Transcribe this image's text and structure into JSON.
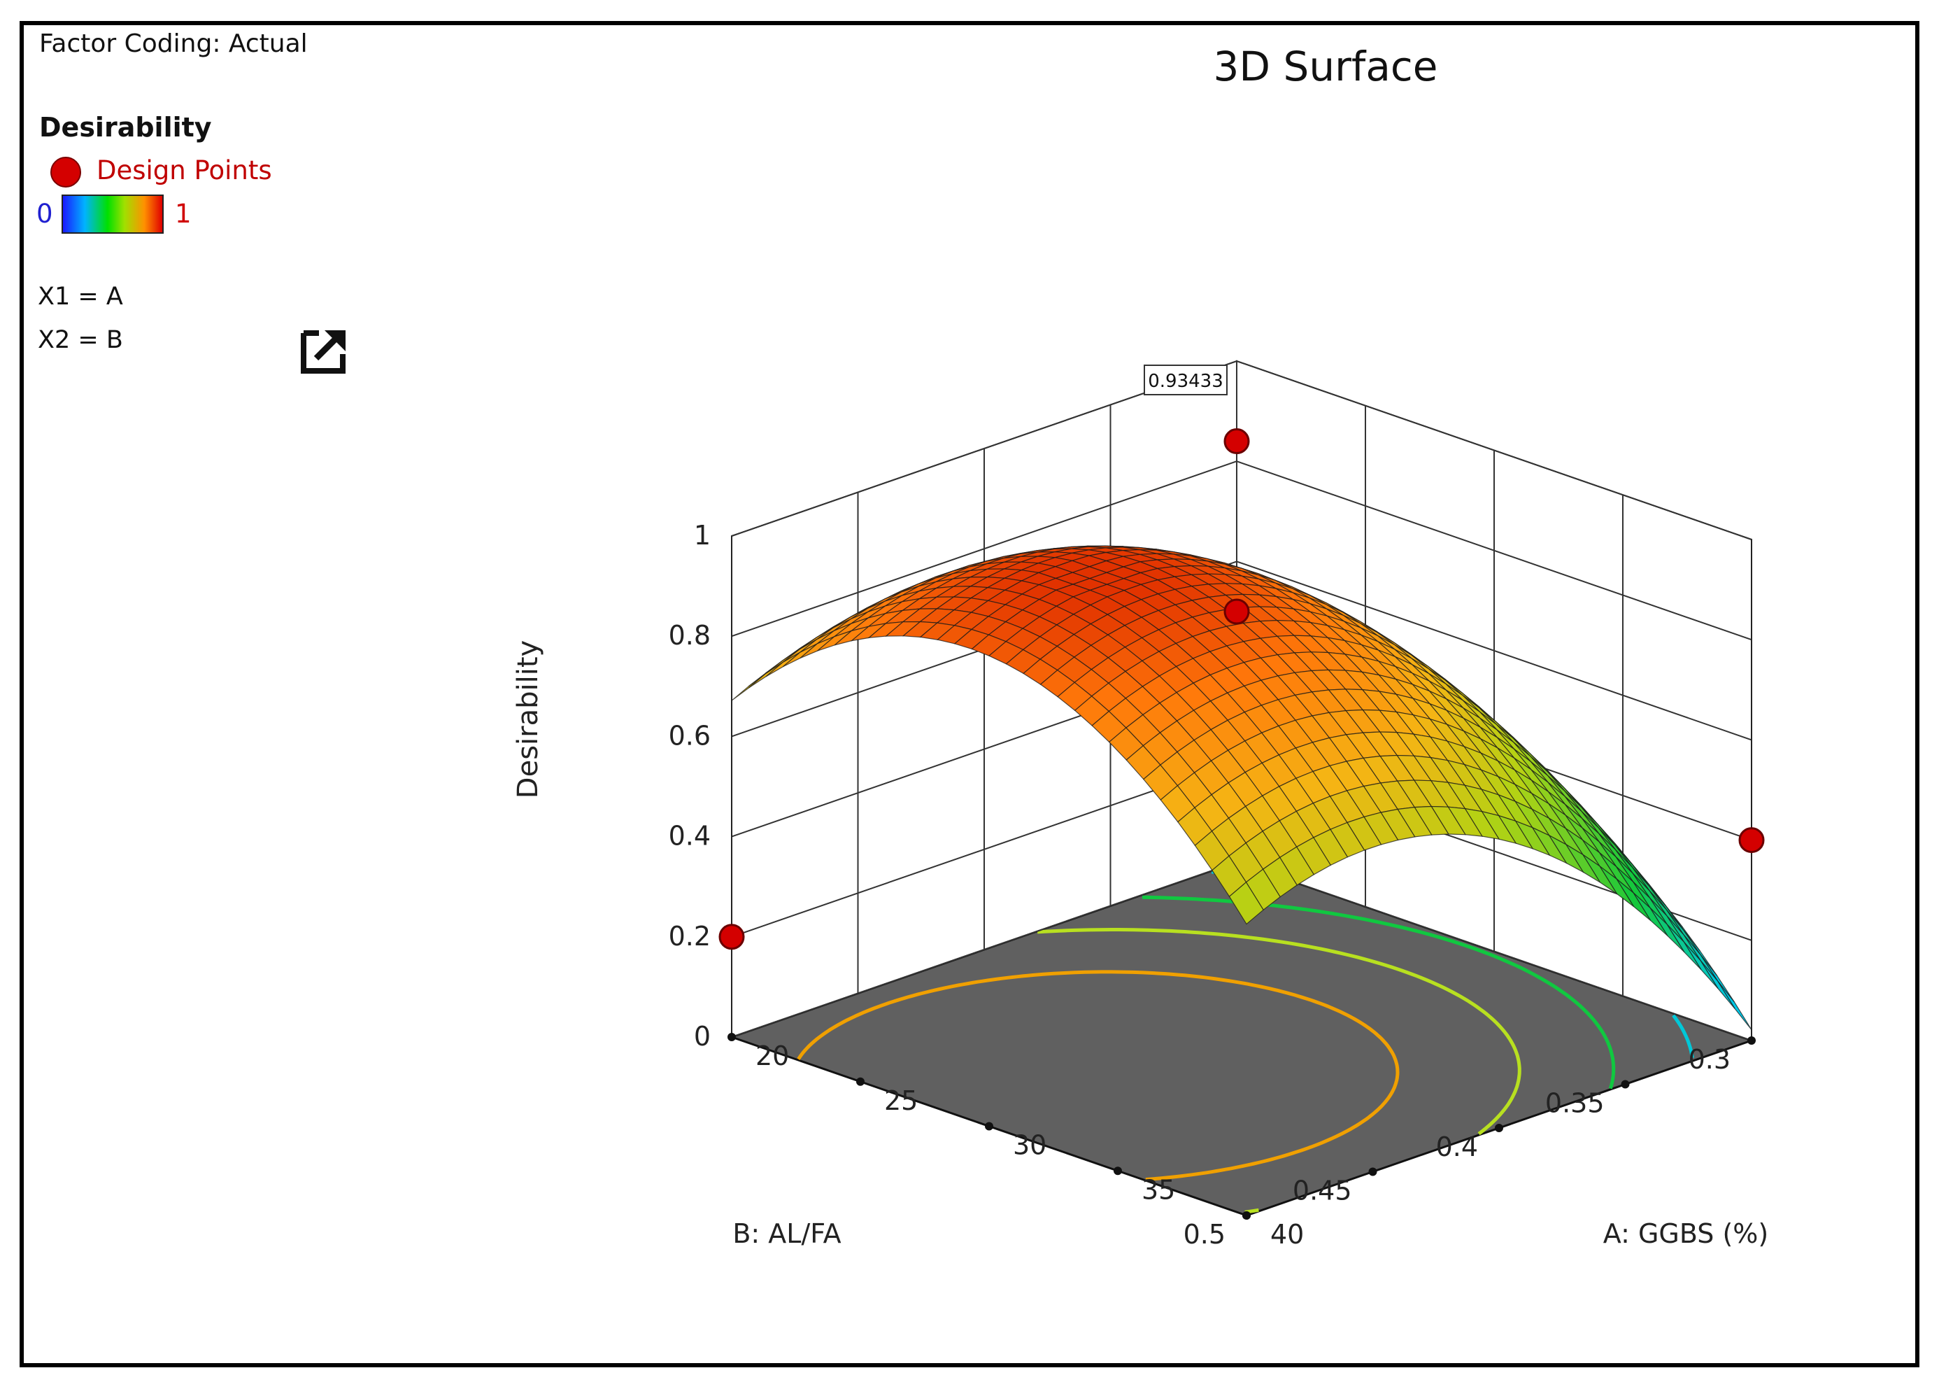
{
  "sidebar": {
    "factor_coding": "Factor Coding: Actual",
    "legend_title": "Desirability",
    "design_points_label": "Design Points",
    "scale_min": "0",
    "scale_max": "1",
    "x1_label": "X1 = A",
    "x2_label": "X2 = B",
    "popout_icon": "external-link-icon"
  },
  "chart_data": {
    "type": "surface3d",
    "title": "3D Surface",
    "zlabel": "Desirability",
    "xlabel": "A: GGBS (%)",
    "ylabel": "B: AL/FA",
    "x_ticks": [
      "20",
      "25",
      "30",
      "35",
      "40"
    ],
    "y_ticks": [
      "0.3",
      "0.35",
      "0.4",
      "0.45",
      "0.5"
    ],
    "z_ticks": [
      "0",
      "0.2",
      "0.4",
      "0.6",
      "0.8",
      "1"
    ],
    "xlim": [
      20,
      40
    ],
    "ylim": [
      0.3,
      0.5
    ],
    "zlim": [
      0,
      1
    ],
    "annotation": "0.93433",
    "design_points": [
      {
        "A": 20,
        "B": 0.5,
        "desirability": 0.2
      },
      {
        "A": 40,
        "B": 0.3,
        "desirability": 0.4
      },
      {
        "A": 20,
        "B": 0.3,
        "desirability": 0.5
      },
      {
        "A": 20,
        "B": 0.3,
        "desirability": 0.84
      }
    ],
    "contour_levels": [
      0.2,
      0.4,
      0.6,
      0.8
    ],
    "colors": {
      "contour_low": "#00c8d8",
      "contour_mid1": "#10c840",
      "contour_mid2": "#b8e020",
      "contour_high": "#f0a000",
      "floor": "#606060",
      "design_point": "#d40000"
    }
  }
}
